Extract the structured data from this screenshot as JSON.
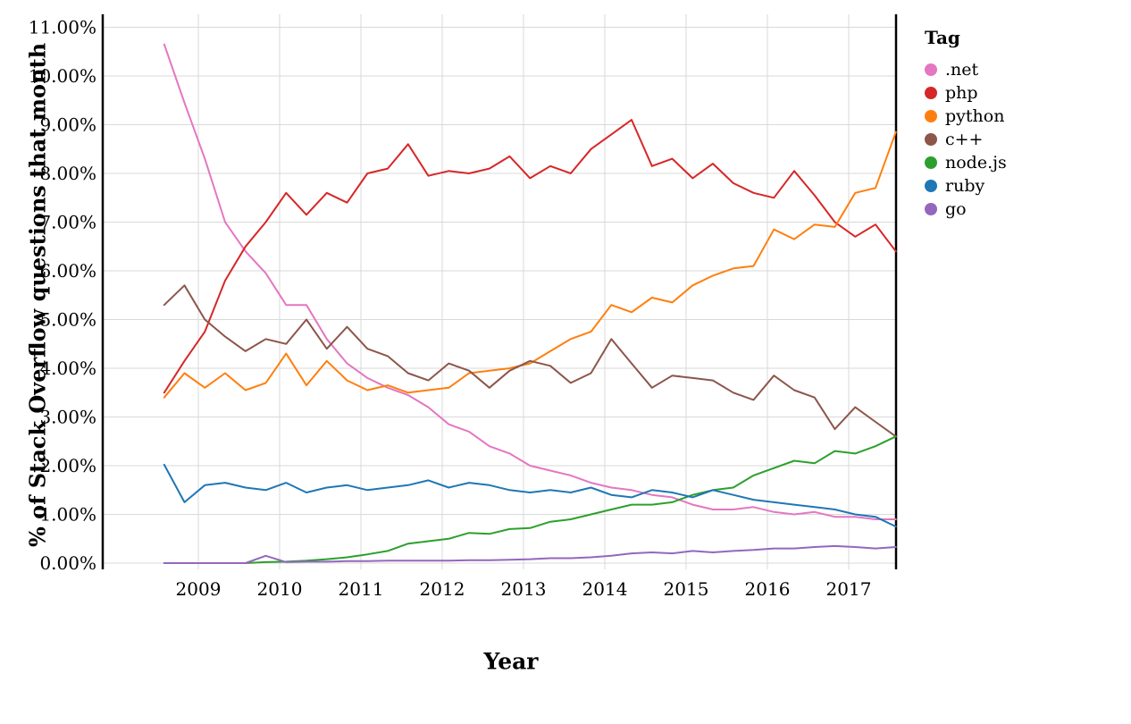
{
  "chart_data": {
    "type": "line",
    "title": "",
    "xlabel": "Year",
    "ylabel": "% of Stack Overflow questions that month",
    "legend_title": "Tag",
    "legend_position": "right",
    "grid": true,
    "xlim": [
      2007.85,
      2017.62
    ],
    "ylim": [
      0,
      11.3
    ],
    "x_ticks": [
      2009,
      2010,
      2011,
      2012,
      2013,
      2014,
      2015,
      2016,
      2017
    ],
    "x_tick_labels": [
      "2009",
      "2010",
      "2011",
      "2012",
      "2013",
      "2014",
      "2015",
      "2016",
      "2017"
    ],
    "y_ticks": [
      0,
      1,
      2,
      3,
      4,
      5,
      6,
      7,
      8,
      9,
      10,
      11
    ],
    "y_tick_labels": [
      "0.00%",
      "1.00%",
      "2.00%",
      "3.00%",
      "4.00%",
      "5.00%",
      "6.00%",
      "7.00%",
      "8.00%",
      "9.00%",
      "10.00%",
      "11.00%"
    ],
    "x": [
      2008.58,
      2008.83,
      2009.08,
      2009.33,
      2009.58,
      2009.83,
      2010.08,
      2010.33,
      2010.58,
      2010.83,
      2011.08,
      2011.33,
      2011.58,
      2011.83,
      2012.08,
      2012.33,
      2012.58,
      2012.83,
      2013.08,
      2013.33,
      2013.58,
      2013.83,
      2014.08,
      2014.33,
      2014.58,
      2014.83,
      2015.08,
      2015.33,
      2015.58,
      2015.83,
      2016.08,
      2016.33,
      2016.58,
      2016.83,
      2017.08,
      2017.33,
      2017.58
    ],
    "series": [
      {
        "name": ".net",
        "color": "#e377c2",
        "values": [
          10.65,
          9.45,
          8.3,
          7.0,
          6.4,
          5.95,
          5.3,
          5.3,
          4.6,
          4.1,
          3.8,
          3.6,
          3.45,
          3.2,
          2.85,
          2.7,
          2.4,
          2.25,
          2.0,
          1.9,
          1.8,
          1.65,
          1.55,
          1.5,
          1.4,
          1.35,
          1.2,
          1.1,
          1.1,
          1.15,
          1.05,
          1.0,
          1.05,
          0.95,
          0.95,
          0.9,
          0.9
        ]
      },
      {
        "name": "php",
        "color": "#d62728",
        "values": [
          3.5,
          4.15,
          4.75,
          5.8,
          6.5,
          7.0,
          7.6,
          7.15,
          7.6,
          7.4,
          8.0,
          8.1,
          8.6,
          7.95,
          8.05,
          8.0,
          8.1,
          8.35,
          7.9,
          8.15,
          8.0,
          8.5,
          8.8,
          9.1,
          8.15,
          8.3,
          7.9,
          8.2,
          7.8,
          7.6,
          7.5,
          8.05,
          7.55,
          7.0,
          6.7,
          6.95,
          6.4
        ]
      },
      {
        "name": "python",
        "color": "#ff7f0e",
        "values": [
          3.4,
          3.9,
          3.6,
          3.9,
          3.55,
          3.7,
          4.3,
          3.65,
          4.15,
          3.75,
          3.55,
          3.65,
          3.5,
          3.55,
          3.6,
          3.9,
          3.95,
          4.0,
          4.1,
          4.35,
          4.6,
          4.75,
          5.3,
          5.15,
          5.45,
          5.35,
          5.7,
          5.9,
          6.05,
          6.1,
          6.85,
          6.65,
          6.95,
          6.9,
          7.6,
          7.7,
          8.85
        ]
      },
      {
        "name": "c++",
        "color": "#8c564b",
        "values": [
          5.3,
          5.7,
          5.0,
          4.65,
          4.35,
          4.6,
          4.5,
          5.0,
          4.4,
          4.85,
          4.4,
          4.25,
          3.9,
          3.75,
          4.1,
          3.95,
          3.6,
          3.95,
          4.15,
          4.05,
          3.7,
          3.9,
          4.6,
          4.1,
          3.6,
          3.85,
          3.8,
          3.75,
          3.5,
          3.35,
          3.85,
          3.55,
          3.4,
          2.75,
          3.2,
          2.9,
          2.6
        ]
      },
      {
        "name": "node.js",
        "color": "#2ca02c",
        "values": [
          0.0,
          0.0,
          0.0,
          0.0,
          0.0,
          0.02,
          0.03,
          0.05,
          0.08,
          0.12,
          0.18,
          0.25,
          0.4,
          0.45,
          0.5,
          0.62,
          0.6,
          0.7,
          0.72,
          0.85,
          0.9,
          1.0,
          1.1,
          1.2,
          1.2,
          1.25,
          1.4,
          1.5,
          1.55,
          1.8,
          1.95,
          2.1,
          2.05,
          2.3,
          2.25,
          2.4,
          2.6
        ]
      },
      {
        "name": "ruby",
        "color": "#1f77b4",
        "values": [
          2.02,
          1.25,
          1.6,
          1.65,
          1.55,
          1.5,
          1.65,
          1.45,
          1.55,
          1.6,
          1.5,
          1.55,
          1.6,
          1.7,
          1.55,
          1.65,
          1.6,
          1.5,
          1.45,
          1.5,
          1.45,
          1.55,
          1.4,
          1.35,
          1.5,
          1.45,
          1.35,
          1.5,
          1.4,
          1.3,
          1.25,
          1.2,
          1.15,
          1.1,
          1.0,
          0.95,
          0.75
        ]
      },
      {
        "name": "go",
        "color": "#9467bd",
        "values": [
          0.0,
          0.0,
          0.0,
          0.0,
          0.0,
          0.15,
          0.02,
          0.03,
          0.03,
          0.04,
          0.04,
          0.05,
          0.05,
          0.05,
          0.05,
          0.06,
          0.06,
          0.07,
          0.08,
          0.1,
          0.1,
          0.12,
          0.15,
          0.2,
          0.22,
          0.2,
          0.25,
          0.22,
          0.25,
          0.27,
          0.3,
          0.3,
          0.33,
          0.35,
          0.33,
          0.3,
          0.33
        ]
      }
    ],
    "style": {
      "grid_color": "#d9d9d9",
      "axis_border_color": "#000000",
      "line_width": 2
    }
  }
}
